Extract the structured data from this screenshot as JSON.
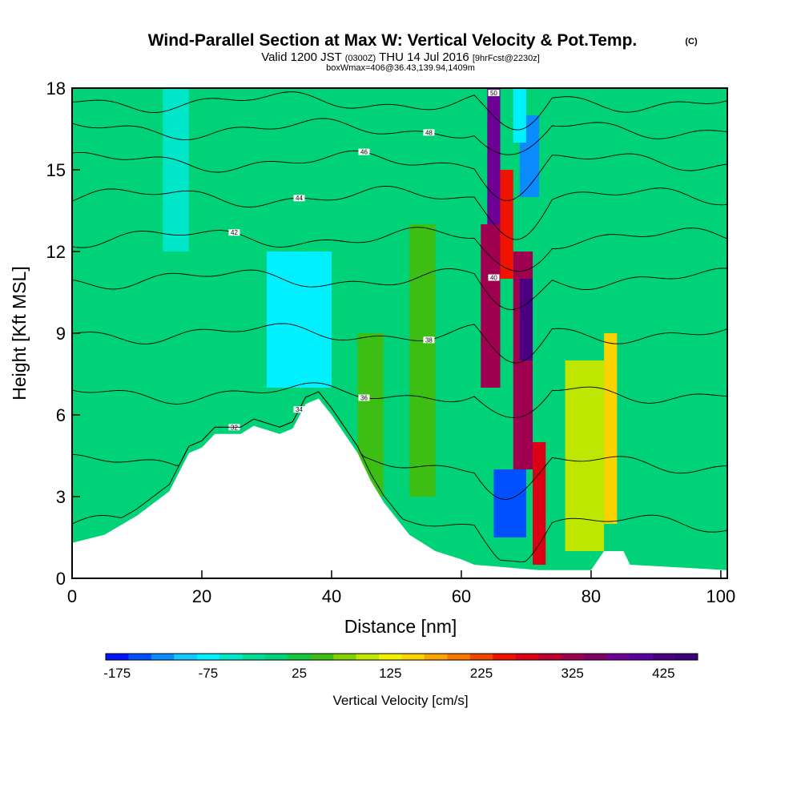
{
  "header": {
    "title": "Wind-Parallel Section at Max W: Vertical Velocity & Pot.Temp.",
    "copyright_mark": "(C)",
    "valid_prefix": "Valid 1200 JST",
    "valid_zulu": "(0300Z)",
    "valid_date": "THU 14 Jul 2016",
    "forecast_tag": "[9hrFcst@2230z]",
    "box_wmax": "boxWmax=406@36.43,139.94,1409m"
  },
  "chart_data": {
    "type": "heatmap",
    "title": "Wind-Parallel Section at Max W: Vertical Velocity & Pot.Temp.",
    "xlabel": "Distance [nm]",
    "ylabel": "Height [Kft MSL]",
    "xlim": [
      0,
      101
    ],
    "ylim": [
      0,
      18
    ],
    "x_ticks": [
      "0",
      "20",
      "40",
      "60",
      "80",
      "100"
    ],
    "y_ticks": [
      "0",
      "3",
      "6",
      "9",
      "12",
      "15",
      "18"
    ],
    "grid": false,
    "colorbar": {
      "label": "Vertical Velocity [cm/s]",
      "min": -175,
      "max": 475,
      "step": 25,
      "tick_labels": [
        "-175",
        "-75",
        "25",
        "125",
        "225",
        "325",
        "425"
      ],
      "colors": [
        "#0014ff",
        "#0050ff",
        "#0a8cff",
        "#14c8ff",
        "#00f0ff",
        "#00e6c8",
        "#00dc96",
        "#00d278",
        "#14c83c",
        "#3cbe14",
        "#82d200",
        "#bee600",
        "#f0f000",
        "#fad200",
        "#faa500",
        "#fa7800",
        "#f04600",
        "#f01400",
        "#dc0014",
        "#be0032",
        "#a00050",
        "#820064",
        "#6e0096",
        "#5a00a0",
        "#4b0082",
        "#3c0078"
      ]
    },
    "terrain": [
      [
        0,
        1.3
      ],
      [
        5,
        1.6
      ],
      [
        10,
        2.3
      ],
      [
        15,
        3.2
      ],
      [
        18,
        4.6
      ],
      [
        20,
        4.8
      ],
      [
        22,
        5.3
      ],
      [
        26,
        5.3
      ],
      [
        28,
        5.6
      ],
      [
        32,
        5.3
      ],
      [
        34,
        5.5
      ],
      [
        36,
        6.4
      ],
      [
        38,
        6.6
      ],
      [
        40,
        6.0
      ],
      [
        42,
        5.3
      ],
      [
        44,
        4.6
      ],
      [
        46,
        3.6
      ],
      [
        48,
        2.8
      ],
      [
        52,
        1.6
      ],
      [
        56,
        1.0
      ],
      [
        60,
        0.7
      ],
      [
        62,
        0.5
      ],
      [
        72,
        0.3
      ],
      [
        80,
        0.3
      ],
      [
        82,
        1.0
      ],
      [
        85,
        1.0
      ],
      [
        86,
        0.5
      ],
      [
        101,
        0.3
      ]
    ],
    "velocity_cells": [
      {
        "x": [
          64,
          66
        ],
        "y": [
          10,
          18
        ],
        "value": 380
      },
      {
        "x": [
          63,
          66
        ],
        "y": [
          7,
          13
        ],
        "value": 330
      },
      {
        "x": [
          66,
          68
        ],
        "y": [
          11,
          15
        ],
        "value": 250
      },
      {
        "x": [
          68,
          71
        ],
        "y": [
          4,
          12
        ],
        "value": 330
      },
      {
        "x": [
          69,
          71
        ],
        "y": [
          8,
          11
        ],
        "value": 430
      },
      {
        "x": [
          71,
          73
        ],
        "y": [
          0.5,
          5
        ],
        "value": 280
      },
      {
        "x": [
          65,
          70
        ],
        "y": [
          1.5,
          4
        ],
        "value": -150
      },
      {
        "x": [
          69,
          72
        ],
        "y": [
          14,
          17
        ],
        "value": -120
      },
      {
        "x": [
          68,
          70
        ],
        "y": [
          16,
          18
        ],
        "value": -60
      },
      {
        "x": [
          14,
          18
        ],
        "y": [
          12,
          18
        ],
        "value": -50
      },
      {
        "x": [
          30,
          40
        ],
        "y": [
          7,
          12
        ],
        "value": -60
      },
      {
        "x": [
          44,
          48
        ],
        "y": [
          3,
          9
        ],
        "value": 60
      },
      {
        "x": [
          52,
          56
        ],
        "y": [
          3,
          13
        ],
        "value": 60
      },
      {
        "x": [
          76,
          82
        ],
        "y": [
          1,
          8
        ],
        "value": 110
      },
      {
        "x": [
          82,
          84
        ],
        "y": [
          2,
          9
        ],
        "value": 150
      }
    ],
    "isentropes": [
      {
        "label": "32",
        "base": 2.0
      },
      {
        "label": "34",
        "base": 4.2
      },
      {
        "label": "36",
        "base": 6.8
      },
      {
        "label": "38",
        "base": 9.0
      },
      {
        "label": "40",
        "base": 11.0
      },
      {
        "label": "42",
        "base": 12.5
      },
      {
        "label": "44",
        "base": 14.0
      },
      {
        "label": "46",
        "base": 15.3
      },
      {
        "label": "48",
        "base": 16.5
      },
      {
        "label": "50",
        "base": 17.5
      }
    ]
  }
}
